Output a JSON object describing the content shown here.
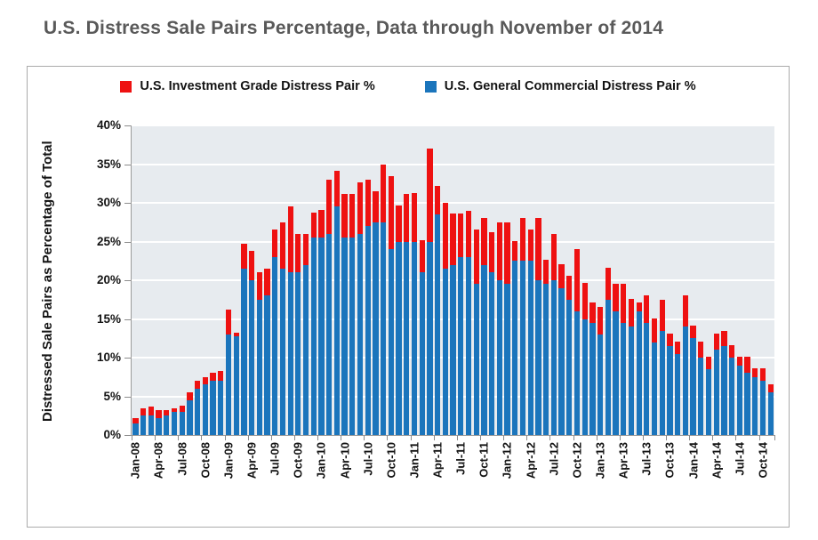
{
  "chart_data": {
    "type": "bar",
    "stacked": true,
    "title": "U.S. Distress Sale Pairs Percentage, Data through November of 2014",
    "xlabel": "",
    "ylabel": "Distressed Sale Pairs as Percentage of Total",
    "ylim": [
      0,
      40
    ],
    "ytick_step": 5,
    "ytick_suffix": "%",
    "xtick_every": 3,
    "grid": true,
    "legend_position": "top",
    "plot_bg_color": "#e7ebef",
    "categories": [
      "Jan-08",
      "Feb-08",
      "Mar-08",
      "Apr-08",
      "May-08",
      "Jun-08",
      "Jul-08",
      "Aug-08",
      "Sep-08",
      "Oct-08",
      "Nov-08",
      "Dec-08",
      "Jan-09",
      "Feb-09",
      "Mar-09",
      "Apr-09",
      "May-09",
      "Jun-09",
      "Jul-09",
      "Aug-09",
      "Sep-09",
      "Oct-09",
      "Nov-09",
      "Dec-09",
      "Jan-10",
      "Feb-10",
      "Mar-10",
      "Apr-10",
      "May-10",
      "Jun-10",
      "Jul-10",
      "Aug-10",
      "Sep-10",
      "Oct-10",
      "Nov-10",
      "Dec-10",
      "Jan-11",
      "Feb-11",
      "Mar-11",
      "Apr-11",
      "May-11",
      "Jun-11",
      "Jul-11",
      "Aug-11",
      "Sep-11",
      "Oct-11",
      "Nov-11",
      "Dec-11",
      "Jan-12",
      "Feb-12",
      "Mar-12",
      "Apr-12",
      "May-12",
      "Jun-12",
      "Jul-12",
      "Aug-12",
      "Sep-12",
      "Oct-12",
      "Nov-12",
      "Dec-12",
      "Jan-13",
      "Feb-13",
      "Mar-13",
      "Apr-13",
      "May-13",
      "Jun-13",
      "Jul-13",
      "Aug-13",
      "Sep-13",
      "Oct-13",
      "Nov-13",
      "Dec-13",
      "Jan-14",
      "Feb-14",
      "Mar-14",
      "Apr-14",
      "May-14",
      "Jun-14",
      "Jul-14",
      "Aug-14",
      "Sep-14",
      "Oct-14",
      "Nov-14"
    ],
    "series": [
      {
        "name": "U.S. Investment Grade Distress Pair %",
        "color": "#ee1111",
        "stack": "top",
        "values": [
          0.7,
          1.0,
          1.2,
          1.0,
          0.7,
          0.5,
          0.8,
          1.0,
          1.0,
          1.0,
          1.0,
          1.3,
          3.2,
          0.4,
          3.2,
          3.8,
          3.5,
          3.5,
          3.6,
          6.0,
          8.5,
          5.0,
          4.0,
          3.2,
          3.6,
          7.0,
          4.6,
          5.6,
          5.6,
          6.6,
          6.0,
          4.0,
          7.5,
          9.5,
          4.6,
          6.1,
          6.3,
          4.2,
          12.0,
          3.7,
          8.5,
          6.6,
          5.6,
          6.0,
          7.0,
          6.0,
          5.2,
          7.5,
          8.0,
          2.6,
          5.6,
          4.1,
          8.0,
          3.1,
          6.0,
          3.1,
          3.1,
          8.0,
          4.6,
          2.6,
          3.6,
          4.1,
          3.6,
          5.1,
          3.6,
          1.1,
          3.6,
          3.1,
          4.0,
          1.6,
          1.6,
          4.0,
          1.6,
          2.1,
          1.6,
          2.1,
          2.0,
          1.6,
          1.1,
          2.1,
          1.1,
          1.6,
          1.0
        ]
      },
      {
        "name": "U.S. General Commercial Distress Pair %",
        "color": "#1b75bc",
        "stack": "bottom",
        "values": [
          1.5,
          2.5,
          2.5,
          2.2,
          2.5,
          3.0,
          3.0,
          4.5,
          6.0,
          6.5,
          7.0,
          7.0,
          13.0,
          12.8,
          21.5,
          20.0,
          17.5,
          18.0,
          23.0,
          21.5,
          21.0,
          21.0,
          22.0,
          25.5,
          25.5,
          26.0,
          29.5,
          25.5,
          25.5,
          26.0,
          27.0,
          27.5,
          27.5,
          24.0,
          25.0,
          25.0,
          25.0,
          21.0,
          25.0,
          28.5,
          21.5,
          22.0,
          23.0,
          23.0,
          19.5,
          22.0,
          21.0,
          20.0,
          19.5,
          22.5,
          22.5,
          22.5,
          20.0,
          19.5,
          20.0,
          19.0,
          17.5,
          16.0,
          15.0,
          14.5,
          13.0,
          17.5,
          16.0,
          14.5,
          14.0,
          16.0,
          14.5,
          12.0,
          13.5,
          11.5,
          10.5,
          14.0,
          12.5,
          10.0,
          8.5,
          11.0,
          11.5,
          10.0,
          9.0,
          8.0,
          7.5,
          7.0,
          5.5
        ]
      }
    ]
  }
}
